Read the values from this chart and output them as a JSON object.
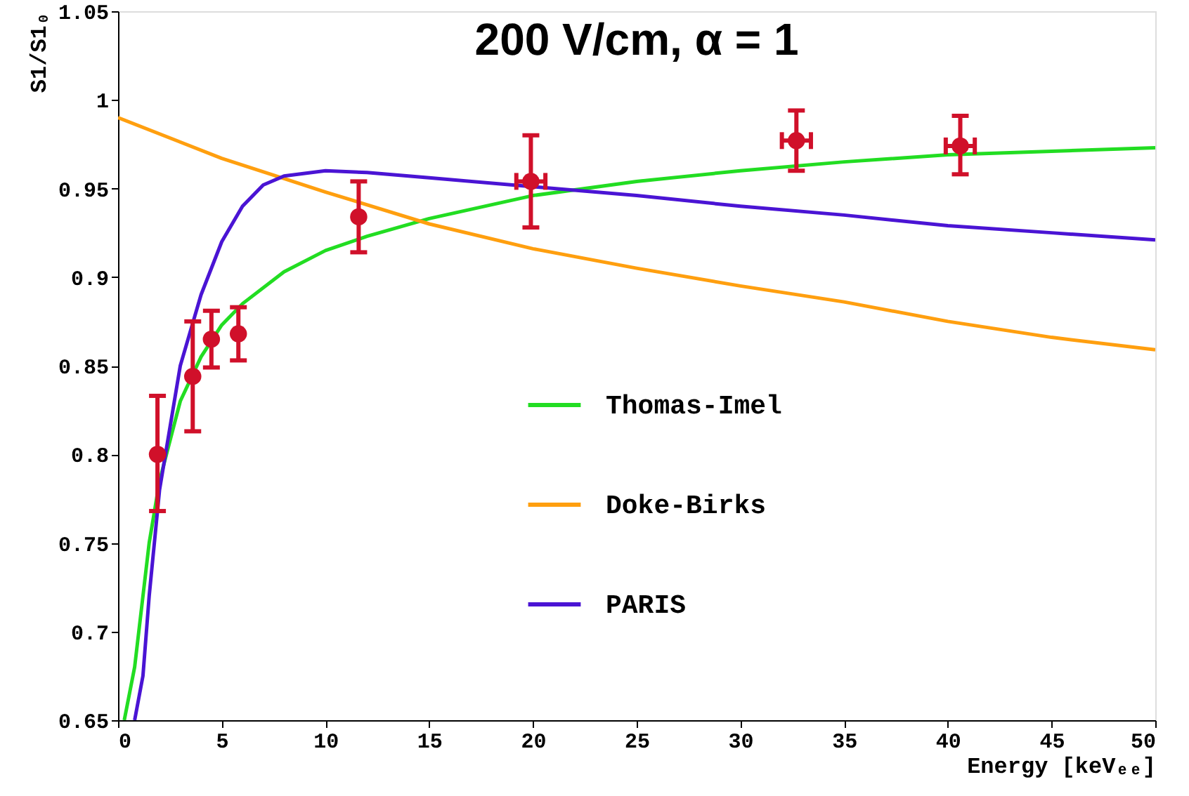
{
  "chart_data": {
    "type": "line",
    "title": "200 V/cm, α = 1",
    "xlabel": "Energy [keVₑₑ]",
    "ylabel": "S1/S1₀",
    "xlim": [
      0,
      50
    ],
    "xticks": [
      0,
      5,
      10,
      15,
      20,
      25,
      30,
      35,
      40,
      45,
      50
    ],
    "ylim": [
      0.65,
      1.05
    ],
    "yticks": [
      0.65,
      0.7,
      0.75,
      0.8,
      0.85,
      0.9,
      0.95,
      1,
      1.05
    ],
    "grid": false,
    "legend": "center",
    "line_style": "solid",
    "series": [
      {
        "name": "Thomas-Imel",
        "type": "line",
        "color": "#22dd22",
        "marker": "none",
        "x": [
          0.3,
          0.8,
          1,
          1.5,
          2,
          3,
          4,
          5,
          6,
          8,
          10,
          12,
          15,
          20,
          25,
          30,
          35,
          40,
          45,
          50
        ],
        "values": [
          0.65,
          0.68,
          0.7,
          0.75,
          0.785,
          0.83,
          0.855,
          0.873,
          0.885,
          0.903,
          0.915,
          0.923,
          0.933,
          0.946,
          0.954,
          0.96,
          0.965,
          0.969,
          0.971,
          0.973
        ]
      },
      {
        "name": "Doke-Birks",
        "type": "line",
        "color": "#ff9f0f",
        "marker": "none",
        "x": [
          0,
          5,
          10,
          15,
          20,
          25,
          30,
          35,
          40,
          45,
          50
        ],
        "values": [
          0.99,
          0.967,
          0.948,
          0.93,
          0.916,
          0.905,
          0.895,
          0.886,
          0.875,
          0.866,
          0.859
        ]
      },
      {
        "name": "PARIS",
        "type": "line",
        "color": "#4a14d4",
        "marker": "none",
        "x": [
          0.8,
          1.2,
          1.5,
          2,
          3,
          4,
          5,
          6,
          7,
          8,
          10,
          12,
          15,
          20,
          25,
          30,
          35,
          40,
          45,
          50
        ],
        "values": [
          0.65,
          0.675,
          0.72,
          0.78,
          0.85,
          0.89,
          0.92,
          0.94,
          0.952,
          0.957,
          0.96,
          0.959,
          0.956,
          0.951,
          0.946,
          0.94,
          0.935,
          0.929,
          0.925,
          0.921
        ]
      },
      {
        "type": "scatter",
        "color": "#d0102a",
        "marker": "circle",
        "x": [
          1.9,
          3.6,
          4.5,
          5.8,
          11.6,
          19.9,
          32.7,
          40.6
        ],
        "values": [
          0.8,
          0.844,
          0.865,
          0.868,
          0.934,
          0.954,
          0.977,
          0.974
        ],
        "errors": [
          [
            0.768,
            0.833
          ],
          [
            0.813,
            0.875
          ],
          [
            0.849,
            0.881
          ],
          [
            0.853,
            0.883
          ],
          [
            0.914,
            0.954
          ],
          [
            0.928,
            0.98
          ],
          [
            0.96,
            0.994
          ],
          [
            0.958,
            0.991
          ]
        ],
        "xerrors": [
          null,
          null,
          null,
          null,
          null,
          0.7,
          0.7,
          0.7
        ]
      }
    ]
  }
}
